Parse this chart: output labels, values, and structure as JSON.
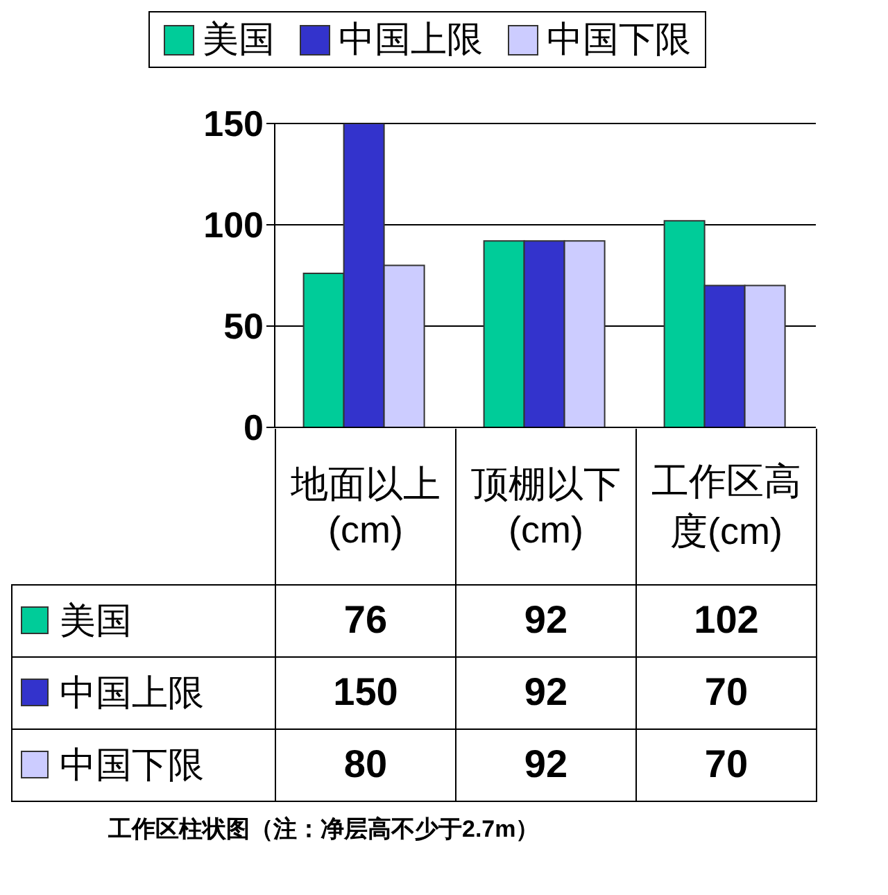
{
  "chart_data": {
    "type": "bar",
    "categories": [
      "地面以上(cm)",
      "顶棚以下(cm)",
      "工作区高度(cm)"
    ],
    "series": [
      {
        "name": "美国",
        "color": "#00cc99",
        "values": [
          76,
          92,
          102
        ]
      },
      {
        "name": "中国上限",
        "color": "#3333cc",
        "values": [
          150,
          92,
          70
        ]
      },
      {
        "name": "中国下限",
        "color": "#ccccff",
        "values": [
          80,
          92,
          70
        ]
      }
    ],
    "ylim": [
      0,
      150
    ],
    "yticks": [
      0,
      50,
      100,
      150
    ],
    "grid": "y",
    "legend": "top",
    "data_labels": true,
    "annotations": [
      "工作区柱状图（注：净层高不少于2.7m）"
    ]
  }
}
